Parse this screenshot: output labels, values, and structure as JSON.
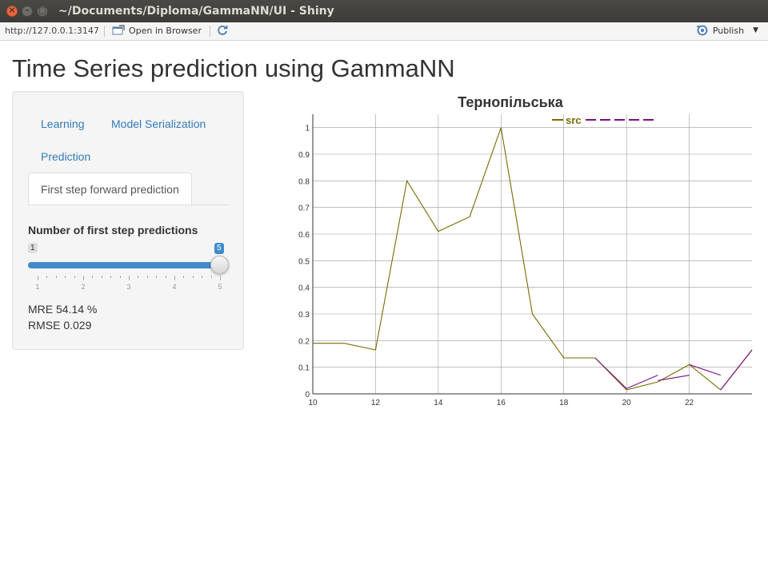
{
  "window": {
    "title": "~/Documents/Diploma/GammaNN/UI - Shiny",
    "close_glyph": "×",
    "min_glyph": "–",
    "max_glyph": "▢"
  },
  "toolbar": {
    "url": "http://127.0.0.1:3147",
    "open_label": "Open in Browser",
    "publish_label": "Publish"
  },
  "page": {
    "title": "Time Series prediction using GammaNN"
  },
  "tabs": [
    {
      "label": "Learning"
    },
    {
      "label": "Model Serialization"
    },
    {
      "label": "Prediction"
    },
    {
      "label": "First step forward prediction",
      "active": true
    }
  ],
  "slider": {
    "label": "Number of first step predictions",
    "min_label": "1",
    "max_label": "5",
    "value": 5,
    "min": 1,
    "max": 5,
    "ticks": [
      "1",
      "2",
      "3",
      "4",
      "5"
    ]
  },
  "metrics": {
    "mre": "MRE 54.14 %",
    "rmse": "RMSE 0.029"
  },
  "colors": {
    "src": "#7a6a00",
    "pred": "#7b0f82",
    "accent": "#428bca"
  },
  "chart_data": {
    "type": "line",
    "title": "Тернопільська",
    "xlim": [
      10,
      24
    ],
    "ylim": [
      0,
      1.05
    ],
    "xticks": [
      10,
      12,
      14,
      16,
      18,
      20,
      22
    ],
    "yticks": [
      0,
      0.1,
      0.2,
      0.3,
      0.4,
      0.5,
      0.6,
      0.7,
      0.8,
      0.9,
      1
    ],
    "series": [
      {
        "name": "src",
        "color": "#7a6a00",
        "dash": false,
        "x": [
          10,
          11,
          12,
          13,
          14,
          15,
          16,
          17,
          18,
          19,
          20,
          21,
          22,
          23,
          24
        ],
        "y": [
          0.19,
          0.19,
          0.165,
          0.8,
          0.61,
          0.665,
          1.0,
          0.3,
          0.135,
          0.135,
          0.015,
          0.045,
          0.11,
          0.015,
          0.165
        ]
      },
      {
        "name": "",
        "color": "#7b0f82",
        "dash": true,
        "segments": [
          {
            "x": [
              19,
              20,
              21
            ],
            "y": [
              0.135,
              0.02,
              0.07
            ]
          },
          {
            "x": [
              21,
              22
            ],
            "y": [
              0.05,
              0.07
            ]
          },
          {
            "x": [
              22,
              23
            ],
            "y": [
              0.11,
              0.07
            ]
          },
          {
            "x": [
              23,
              24
            ],
            "y": [
              0.015,
              0.165
            ]
          }
        ]
      }
    ]
  }
}
